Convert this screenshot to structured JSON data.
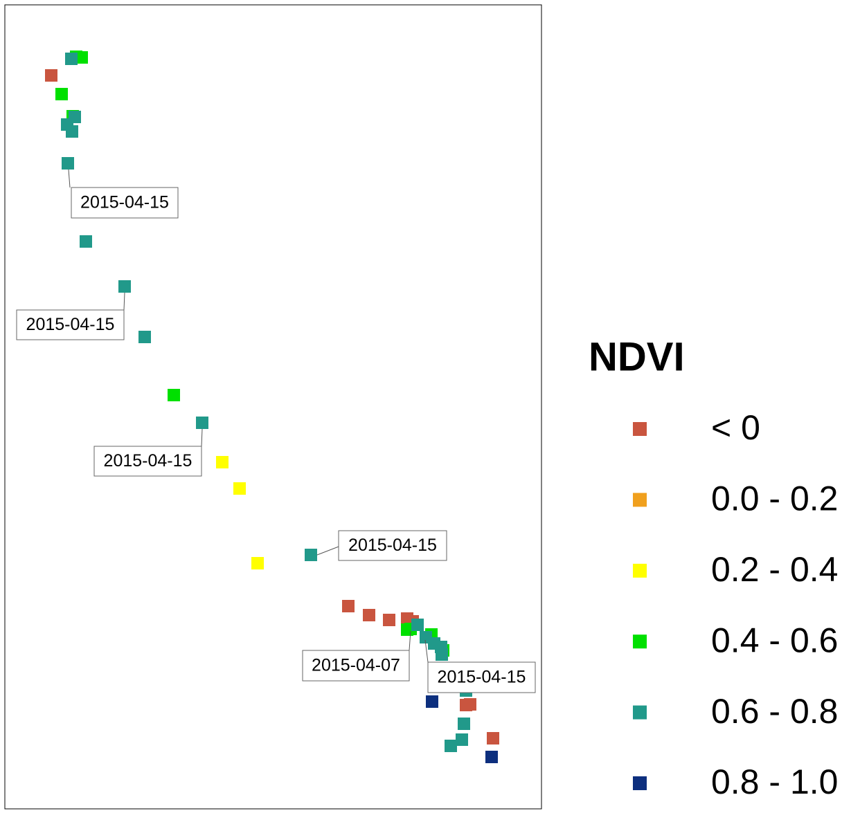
{
  "chart_data": {
    "type": "scatter",
    "legend_title": "NDVI",
    "xlim": [
      0,
      775
    ],
    "ylim": [
      0,
      1162
    ],
    "series": [
      {
        "name": "< 0",
        "color": "#c9553f",
        "x": [
          67,
          496,
          526,
          555,
          581,
          589,
          672,
          666,
          705
        ],
        "values": [
          1060,
          293,
          280,
          273,
          275,
          271,
          151,
          150,
          102
        ]
      },
      {
        "name": "0.0 - 0.2",
        "color": "#f0a01e",
        "x": [],
        "values": []
      },
      {
        "name": "0.2 - 0.4",
        "color": "#ffff00",
        "x": [
          314,
          339,
          365
        ],
        "values": [
          501,
          463,
          355
        ]
      },
      {
        "name": "0.4 - 0.6",
        "color": "#00e000",
        "x": [
          111,
          103,
          82,
          98,
          244,
          586,
          616,
          633,
          581
        ],
        "values": [
          1086,
          1087,
          1033,
          1001,
          598,
          260,
          252,
          229,
          259
        ]
      },
      {
        "name": "0.6 - 0.8",
        "color": "#21998a",
        "x": [
          96,
          101,
          90,
          97,
          91,
          117,
          173,
          202,
          285,
          442,
          596,
          608,
          620,
          630,
          631,
          666,
          663,
          660,
          644
        ],
        "values": [
          1084,
          1000,
          989,
          979,
          933,
          820,
          755,
          682,
          558,
          367,
          266,
          248,
          239,
          234,
          223,
          171,
          123,
          100,
          91
        ]
      },
      {
        "name": "0.8 - 1.0",
        "color": "#0d2f7e",
        "x": [
          617,
          703
        ],
        "values": [
          155,
          75
        ]
      }
    ],
    "annotations": [
      "2015-04-15",
      "2015-04-15",
      "2015-04-15",
      "2015-04-15",
      "2015-04-07",
      "2015-04-15"
    ]
  }
}
